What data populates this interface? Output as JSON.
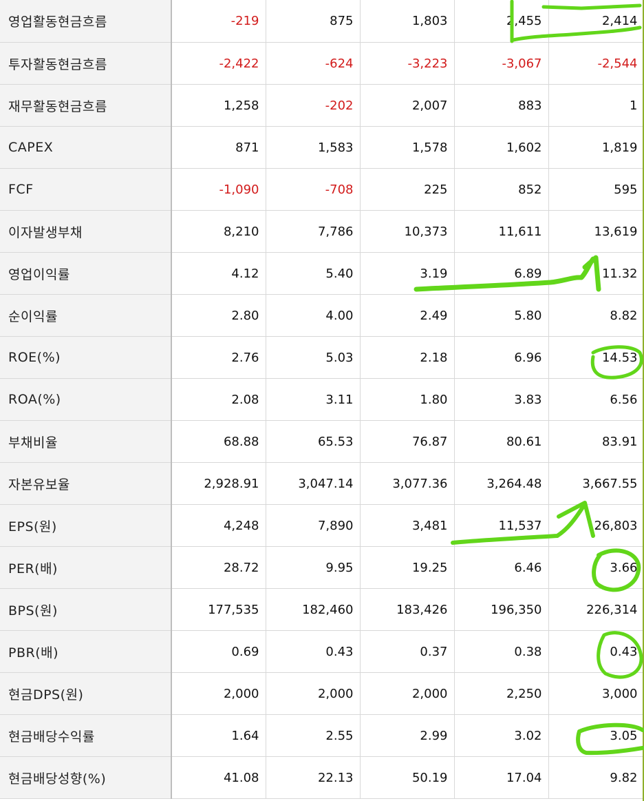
{
  "rows": [
    {
      "label": "영업활동현금흐름",
      "values": [
        "-219",
        "875",
        "1,803",
        "2,455",
        "2,414"
      ],
      "neg": [
        true,
        false,
        false,
        false,
        false
      ]
    },
    {
      "label": "투자활동현금흐름",
      "values": [
        "-2,422",
        "-624",
        "-3,223",
        "-3,067",
        "-2,544"
      ],
      "neg": [
        true,
        true,
        true,
        true,
        true
      ]
    },
    {
      "label": "재무활동현금흐름",
      "values": [
        "1,258",
        "-202",
        "2,007",
        "883",
        "1"
      ],
      "neg": [
        false,
        true,
        false,
        false,
        false
      ]
    },
    {
      "label": "CAPEX",
      "values": [
        "871",
        "1,583",
        "1,578",
        "1,602",
        "1,819"
      ],
      "neg": [
        false,
        false,
        false,
        false,
        false
      ]
    },
    {
      "label": "FCF",
      "values": [
        "-1,090",
        "-708",
        "225",
        "852",
        "595"
      ],
      "neg": [
        true,
        true,
        false,
        false,
        false
      ]
    },
    {
      "label": "이자발생부채",
      "values": [
        "8,210",
        "7,786",
        "10,373",
        "11,611",
        "13,619"
      ],
      "neg": [
        false,
        false,
        false,
        false,
        false
      ]
    },
    {
      "label": "영업이익률",
      "values": [
        "4.12",
        "5.40",
        "3.19",
        "6.89",
        "11.32"
      ],
      "neg": [
        false,
        false,
        false,
        false,
        false
      ]
    },
    {
      "label": "순이익률",
      "values": [
        "2.80",
        "4.00",
        "2.49",
        "5.80",
        "8.82"
      ],
      "neg": [
        false,
        false,
        false,
        false,
        false
      ]
    },
    {
      "label": "ROE(%)",
      "values": [
        "2.76",
        "5.03",
        "2.18",
        "6.96",
        "14.53"
      ],
      "neg": [
        false,
        false,
        false,
        false,
        false
      ]
    },
    {
      "label": "ROA(%)",
      "values": [
        "2.08",
        "3.11",
        "1.80",
        "3.83",
        "6.56"
      ],
      "neg": [
        false,
        false,
        false,
        false,
        false
      ]
    },
    {
      "label": "부채비율",
      "values": [
        "68.88",
        "65.53",
        "76.87",
        "80.61",
        "83.91"
      ],
      "neg": [
        false,
        false,
        false,
        false,
        false
      ]
    },
    {
      "label": "자본유보율",
      "values": [
        "2,928.91",
        "3,047.14",
        "3,077.36",
        "3,264.48",
        "3,667.55"
      ],
      "neg": [
        false,
        false,
        false,
        false,
        false
      ]
    },
    {
      "label": "EPS(원)",
      "values": [
        "4,248",
        "7,890",
        "3,481",
        "11,537",
        "26,803"
      ],
      "neg": [
        false,
        false,
        false,
        false,
        false
      ]
    },
    {
      "label": "PER(배)",
      "values": [
        "28.72",
        "9.95",
        "19.25",
        "6.46",
        "3.66"
      ],
      "neg": [
        false,
        false,
        false,
        false,
        false
      ]
    },
    {
      "label": "BPS(원)",
      "values": [
        "177,535",
        "182,460",
        "183,426",
        "196,350",
        "226,314"
      ],
      "neg": [
        false,
        false,
        false,
        false,
        false
      ]
    },
    {
      "label": "PBR(배)",
      "values": [
        "0.69",
        "0.43",
        "0.37",
        "0.38",
        "0.43"
      ],
      "neg": [
        false,
        false,
        false,
        false,
        false
      ]
    },
    {
      "label": "현금DPS(원)",
      "values": [
        "2,000",
        "2,000",
        "2,000",
        "2,250",
        "3,000"
      ],
      "neg": [
        false,
        false,
        false,
        false,
        false
      ]
    },
    {
      "label": "현금배당수익률",
      "values": [
        "1.64",
        "2.55",
        "2.99",
        "3.02",
        "3.05"
      ],
      "neg": [
        false,
        false,
        false,
        false,
        false
      ]
    },
    {
      "label": "현금배당성향(%)",
      "values": [
        "41.08",
        "22.13",
        "50.19",
        "17.04",
        "9.82"
      ],
      "neg": [
        false,
        false,
        false,
        false,
        false
      ]
    }
  ],
  "colors": {
    "negative": "#d21b1b",
    "label_bg": "#f3f3f3",
    "annotation": "#62d61a"
  }
}
